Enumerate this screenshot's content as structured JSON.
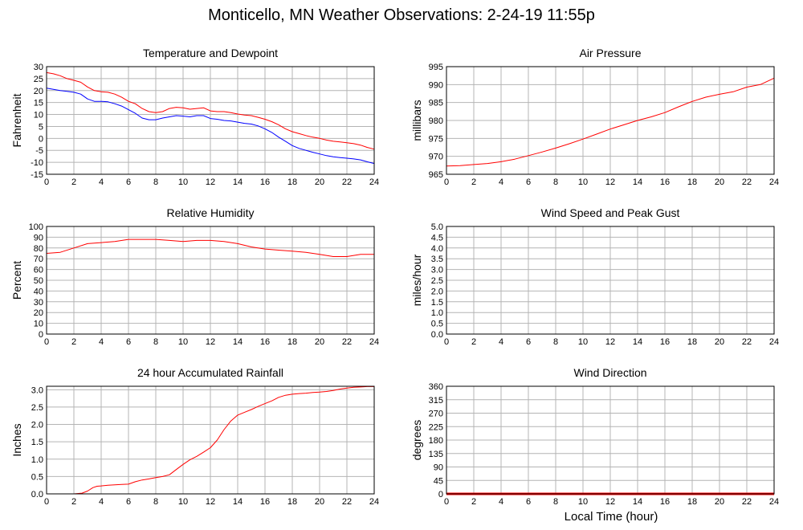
{
  "page": {
    "title": "Monticello, MN Weather Observations: 2-24-19 11:55p",
    "x_axis_label": "Local Time (hour)"
  },
  "colors": {
    "red": "#ff0000",
    "blue": "#0000ff",
    "grid": "#b4b4b4",
    "frame": "#000000"
  },
  "chart_data": [
    {
      "id": "temperature",
      "type": "line",
      "title": "Temperature and Dewpoint",
      "ylabel": "Fahrenheit",
      "xlim": [
        0,
        24
      ],
      "ylim": [
        -15,
        30
      ],
      "xticks": [
        0,
        2,
        4,
        6,
        8,
        10,
        12,
        14,
        16,
        18,
        20,
        22,
        24
      ],
      "yticks": [
        -15,
        -10,
        -5,
        0,
        5,
        10,
        15,
        20,
        25,
        30
      ],
      "grid": true,
      "series": [
        {
          "color": "#ff0000",
          "x": [
            0,
            0.5,
            1,
            1.5,
            2,
            2.5,
            3,
            3.5,
            4,
            4.5,
            5,
            5.5,
            6,
            6.5,
            7,
            7.5,
            8,
            8.5,
            9,
            9.5,
            10,
            10.5,
            11,
            11.5,
            12,
            12.5,
            13,
            13.5,
            14,
            14.5,
            15,
            15.5,
            16,
            16.5,
            17,
            17.5,
            18,
            18.5,
            19,
            19.5,
            20,
            20.5,
            21,
            21.5,
            22,
            22.5,
            23,
            23.5,
            24
          ],
          "y": [
            27.5,
            27,
            26.2,
            25,
            24.3,
            23.5,
            21.5,
            20,
            19.5,
            19.3,
            18.5,
            17.2,
            15.5,
            14.5,
            12.5,
            11.2,
            10.8,
            11.2,
            12.5,
            13,
            12.8,
            12.2,
            12.5,
            12.8,
            11.5,
            11.2,
            11.2,
            10.8,
            10.2,
            9.8,
            9.5,
            8.8,
            8,
            7,
            5.7,
            4,
            2.8,
            2,
            1.2,
            0.5,
            0,
            -0.7,
            -1.2,
            -1.5,
            -1.8,
            -2.2,
            -2.8,
            -3.8,
            -4.5
          ]
        },
        {
          "color": "#0000ff",
          "x": [
            0,
            0.5,
            1,
            1.5,
            2,
            2.5,
            3,
            3.5,
            4,
            4.5,
            5,
            5.5,
            6,
            6.5,
            7,
            7.5,
            8,
            8.5,
            9,
            9.5,
            10,
            10.5,
            11,
            11.5,
            12,
            12.5,
            13,
            13.5,
            14,
            14.5,
            15,
            15.5,
            16,
            16.5,
            17,
            17.5,
            18,
            18.5,
            19,
            19.5,
            20,
            20.5,
            21,
            21.5,
            22,
            22.5,
            23,
            23.5,
            24
          ],
          "y": [
            21,
            20.5,
            20,
            19.7,
            19.3,
            18.5,
            16.5,
            15.5,
            15.5,
            15.3,
            14.5,
            13.5,
            12,
            10.5,
            8.5,
            7.8,
            7.8,
            8.5,
            9,
            9.5,
            9.3,
            9,
            9.5,
            9.5,
            8.3,
            8,
            7.5,
            7.3,
            6.8,
            6.3,
            6,
            5.2,
            4,
            2.5,
            0.5,
            -1.2,
            -3,
            -4.2,
            -5,
            -5.8,
            -6.5,
            -7.2,
            -7.7,
            -8,
            -8.3,
            -8.6,
            -9,
            -9.8,
            -10.5
          ]
        }
      ]
    },
    {
      "id": "pressure",
      "type": "line",
      "title": "Air Pressure",
      "ylabel": "millibars",
      "xlim": [
        0,
        24
      ],
      "ylim": [
        965,
        995
      ],
      "xticks": [
        0,
        2,
        4,
        6,
        8,
        10,
        12,
        14,
        16,
        18,
        20,
        22,
        24
      ],
      "yticks": [
        965,
        970,
        975,
        980,
        985,
        990,
        995
      ],
      "grid": true,
      "series": [
        {
          "color": "#ff0000",
          "x": [
            0,
            1,
            2,
            3,
            4,
            5,
            6,
            7,
            8,
            9,
            10,
            11,
            12,
            13,
            14,
            15,
            16,
            17,
            18,
            19,
            20,
            21,
            22,
            23,
            24
          ],
          "y": [
            967.3,
            967.4,
            967.7,
            968,
            968.5,
            969.2,
            970.2,
            971.2,
            972.3,
            973.5,
            974.8,
            976.2,
            977.6,
            978.8,
            980,
            981,
            982.2,
            983.8,
            985.3,
            986.5,
            987.3,
            988,
            989.3,
            990,
            991.8
          ]
        }
      ]
    },
    {
      "id": "humidity",
      "type": "line",
      "title": "Relative Humidity",
      "ylabel": "Percent",
      "xlim": [
        0,
        24
      ],
      "ylim": [
        0,
        100
      ],
      "xticks": [
        0,
        2,
        4,
        6,
        8,
        10,
        12,
        14,
        16,
        18,
        20,
        22,
        24
      ],
      "yticks": [
        0,
        10,
        20,
        30,
        40,
        50,
        60,
        70,
        80,
        90,
        100
      ],
      "grid": true,
      "series": [
        {
          "color": "#ff0000",
          "x": [
            0,
            1,
            2,
            3,
            4,
            5,
            6,
            7,
            8,
            9,
            10,
            11,
            12,
            13,
            14,
            15,
            16,
            17,
            18,
            19,
            20,
            21,
            22,
            23,
            24
          ],
          "y": [
            75,
            76,
            80,
            84,
            85,
            86,
            88,
            88,
            88,
            87,
            86,
            87,
            87,
            86,
            84,
            81,
            79,
            78,
            77,
            76,
            74,
            72,
            72,
            74,
            74
          ]
        }
      ]
    },
    {
      "id": "wind-speed",
      "type": "line",
      "title": "Wind Speed and Peak Gust",
      "ylabel": "miles/hour",
      "xlim": [
        0,
        24
      ],
      "ylim": [
        0,
        5
      ],
      "xticks": [
        0,
        2,
        4,
        6,
        8,
        10,
        12,
        14,
        16,
        18,
        20,
        22,
        24
      ],
      "yticks": [
        "0.0",
        "0.5",
        "1.0",
        "1.5",
        "2.0",
        "2.5",
        "3.0",
        "3.5",
        "4.0",
        "4.5",
        "5.0"
      ],
      "grid": true,
      "series": [
        {
          "color": "#ff0000",
          "x": [
            0,
            24
          ],
          "y": [
            0,
            0
          ]
        },
        {
          "color": "#0000ff",
          "x": [
            0,
            24
          ],
          "y": [
            0,
            0
          ]
        }
      ]
    },
    {
      "id": "rainfall",
      "type": "line",
      "title": "24 hour Accumulated Rainfall",
      "ylabel": "Inches",
      "xlim": [
        0,
        24
      ],
      "ylim": [
        0,
        3.1
      ],
      "xticks": [
        0,
        2,
        4,
        6,
        8,
        10,
        12,
        14,
        16,
        18,
        20,
        22,
        24
      ],
      "yticks": [
        "0.0",
        "0.5",
        "1.0",
        "1.5",
        "2.0",
        "2.5",
        "3.0"
      ],
      "grid": true,
      "series": [
        {
          "color": "#ff0000",
          "x": [
            0,
            1,
            2,
            2.6,
            3,
            3.4,
            3.7,
            4,
            4.5,
            5,
            5.5,
            6,
            6.5,
            7,
            7.5,
            8,
            8.5,
            9,
            9.5,
            10,
            10.5,
            11,
            11.5,
            12,
            12.5,
            13,
            13.5,
            14,
            14.5,
            15,
            15.5,
            16,
            16.5,
            17,
            17.5,
            18,
            18.5,
            19,
            19.5,
            20,
            20.5,
            21,
            21.5,
            22,
            22.5,
            23,
            23.5,
            24
          ],
          "y": [
            0,
            0,
            0,
            0.02,
            0.08,
            0.18,
            0.22,
            0.23,
            0.25,
            0.26,
            0.27,
            0.28,
            0.35,
            0.4,
            0.43,
            0.47,
            0.5,
            0.55,
            0.7,
            0.85,
            0.98,
            1.08,
            1.2,
            1.33,
            1.55,
            1.85,
            2.1,
            2.27,
            2.35,
            2.43,
            2.52,
            2.6,
            2.68,
            2.78,
            2.84,
            2.87,
            2.89,
            2.9,
            2.92,
            2.93,
            2.95,
            2.98,
            3.02,
            3.05,
            3.07,
            3.08,
            3.09,
            3.09
          ]
        }
      ]
    },
    {
      "id": "wind-direction",
      "type": "line",
      "title": "Wind Direction",
      "ylabel": "degrees",
      "xlim": [
        0,
        24
      ],
      "ylim": [
        0,
        360
      ],
      "xticks": [
        0,
        2,
        4,
        6,
        8,
        10,
        12,
        14,
        16,
        18,
        20,
        22,
        24
      ],
      "yticks": [
        0,
        45,
        90,
        135,
        180,
        225,
        270,
        315,
        360
      ],
      "grid": true,
      "series": [
        {
          "color": "#ff0000",
          "thick": true,
          "x": [
            0,
            24
          ],
          "y": [
            0,
            0
          ]
        }
      ]
    }
  ]
}
